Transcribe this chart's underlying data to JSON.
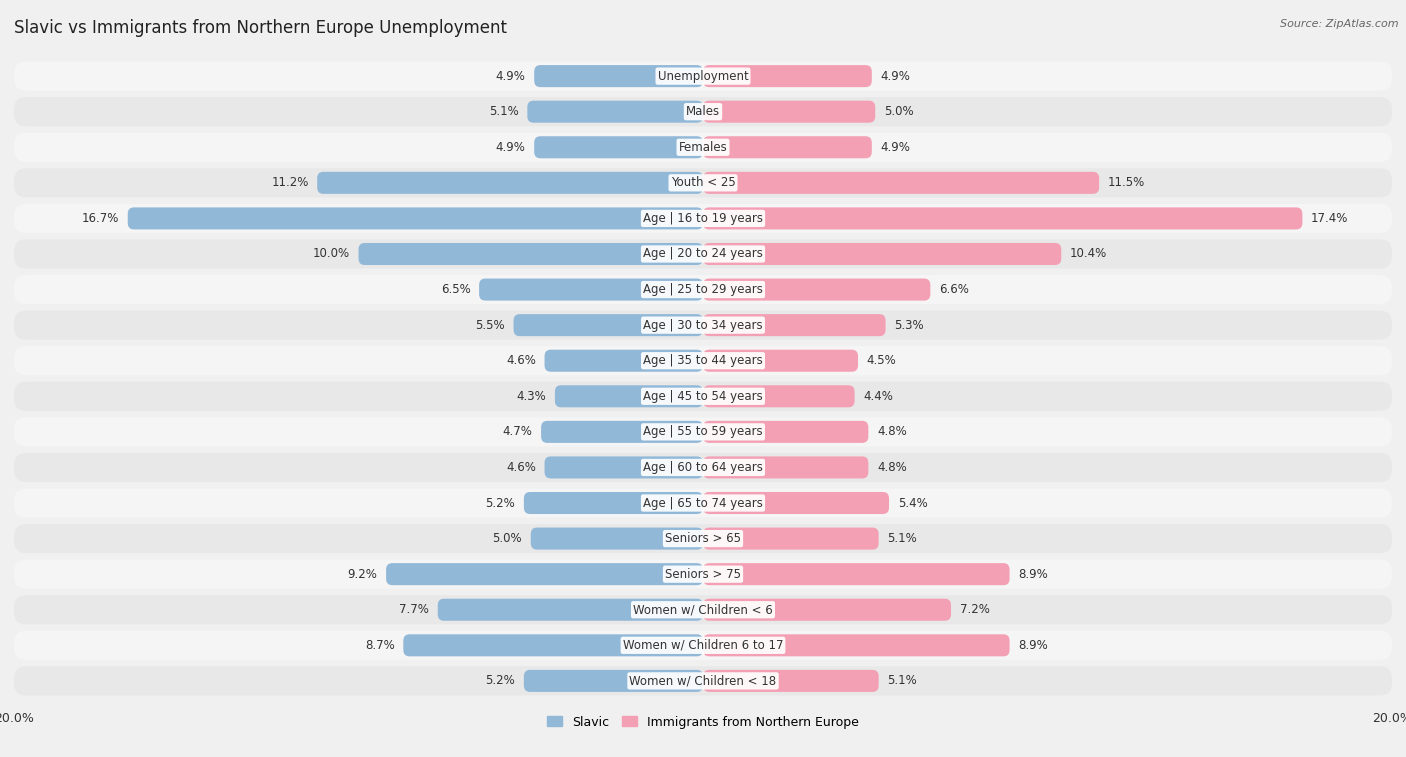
{
  "title": "Slavic vs Immigrants from Northern Europe Unemployment",
  "source": "Source: ZipAtlas.com",
  "categories": [
    "Unemployment",
    "Males",
    "Females",
    "Youth < 25",
    "Age | 16 to 19 years",
    "Age | 20 to 24 years",
    "Age | 25 to 29 years",
    "Age | 30 to 34 years",
    "Age | 35 to 44 years",
    "Age | 45 to 54 years",
    "Age | 55 to 59 years",
    "Age | 60 to 64 years",
    "Age | 65 to 74 years",
    "Seniors > 65",
    "Seniors > 75",
    "Women w/ Children < 6",
    "Women w/ Children 6 to 17",
    "Women w/ Children < 18"
  ],
  "slavic_values": [
    4.9,
    5.1,
    4.9,
    11.2,
    16.7,
    10.0,
    6.5,
    5.5,
    4.6,
    4.3,
    4.7,
    4.6,
    5.2,
    5.0,
    9.2,
    7.7,
    8.7,
    5.2
  ],
  "immigrant_values": [
    4.9,
    5.0,
    4.9,
    11.5,
    17.4,
    10.4,
    6.6,
    5.3,
    4.5,
    4.4,
    4.8,
    4.8,
    5.4,
    5.1,
    8.9,
    7.2,
    8.9,
    5.1
  ],
  "slavic_color": "#92b8d8",
  "immigrant_color": "#f4a0b4",
  "row_color_odd": "#f5f5f5",
  "row_color_even": "#e8e8e8",
  "background_color": "#f0f0f0",
  "axis_limit": 20.0,
  "bar_height": 0.62,
  "legend_slavic": "Slavic",
  "legend_immigrant": "Immigrants from Northern Europe",
  "title_fontsize": 12,
  "source_fontsize": 8,
  "label_fontsize": 8.5,
  "value_fontsize": 8.5
}
